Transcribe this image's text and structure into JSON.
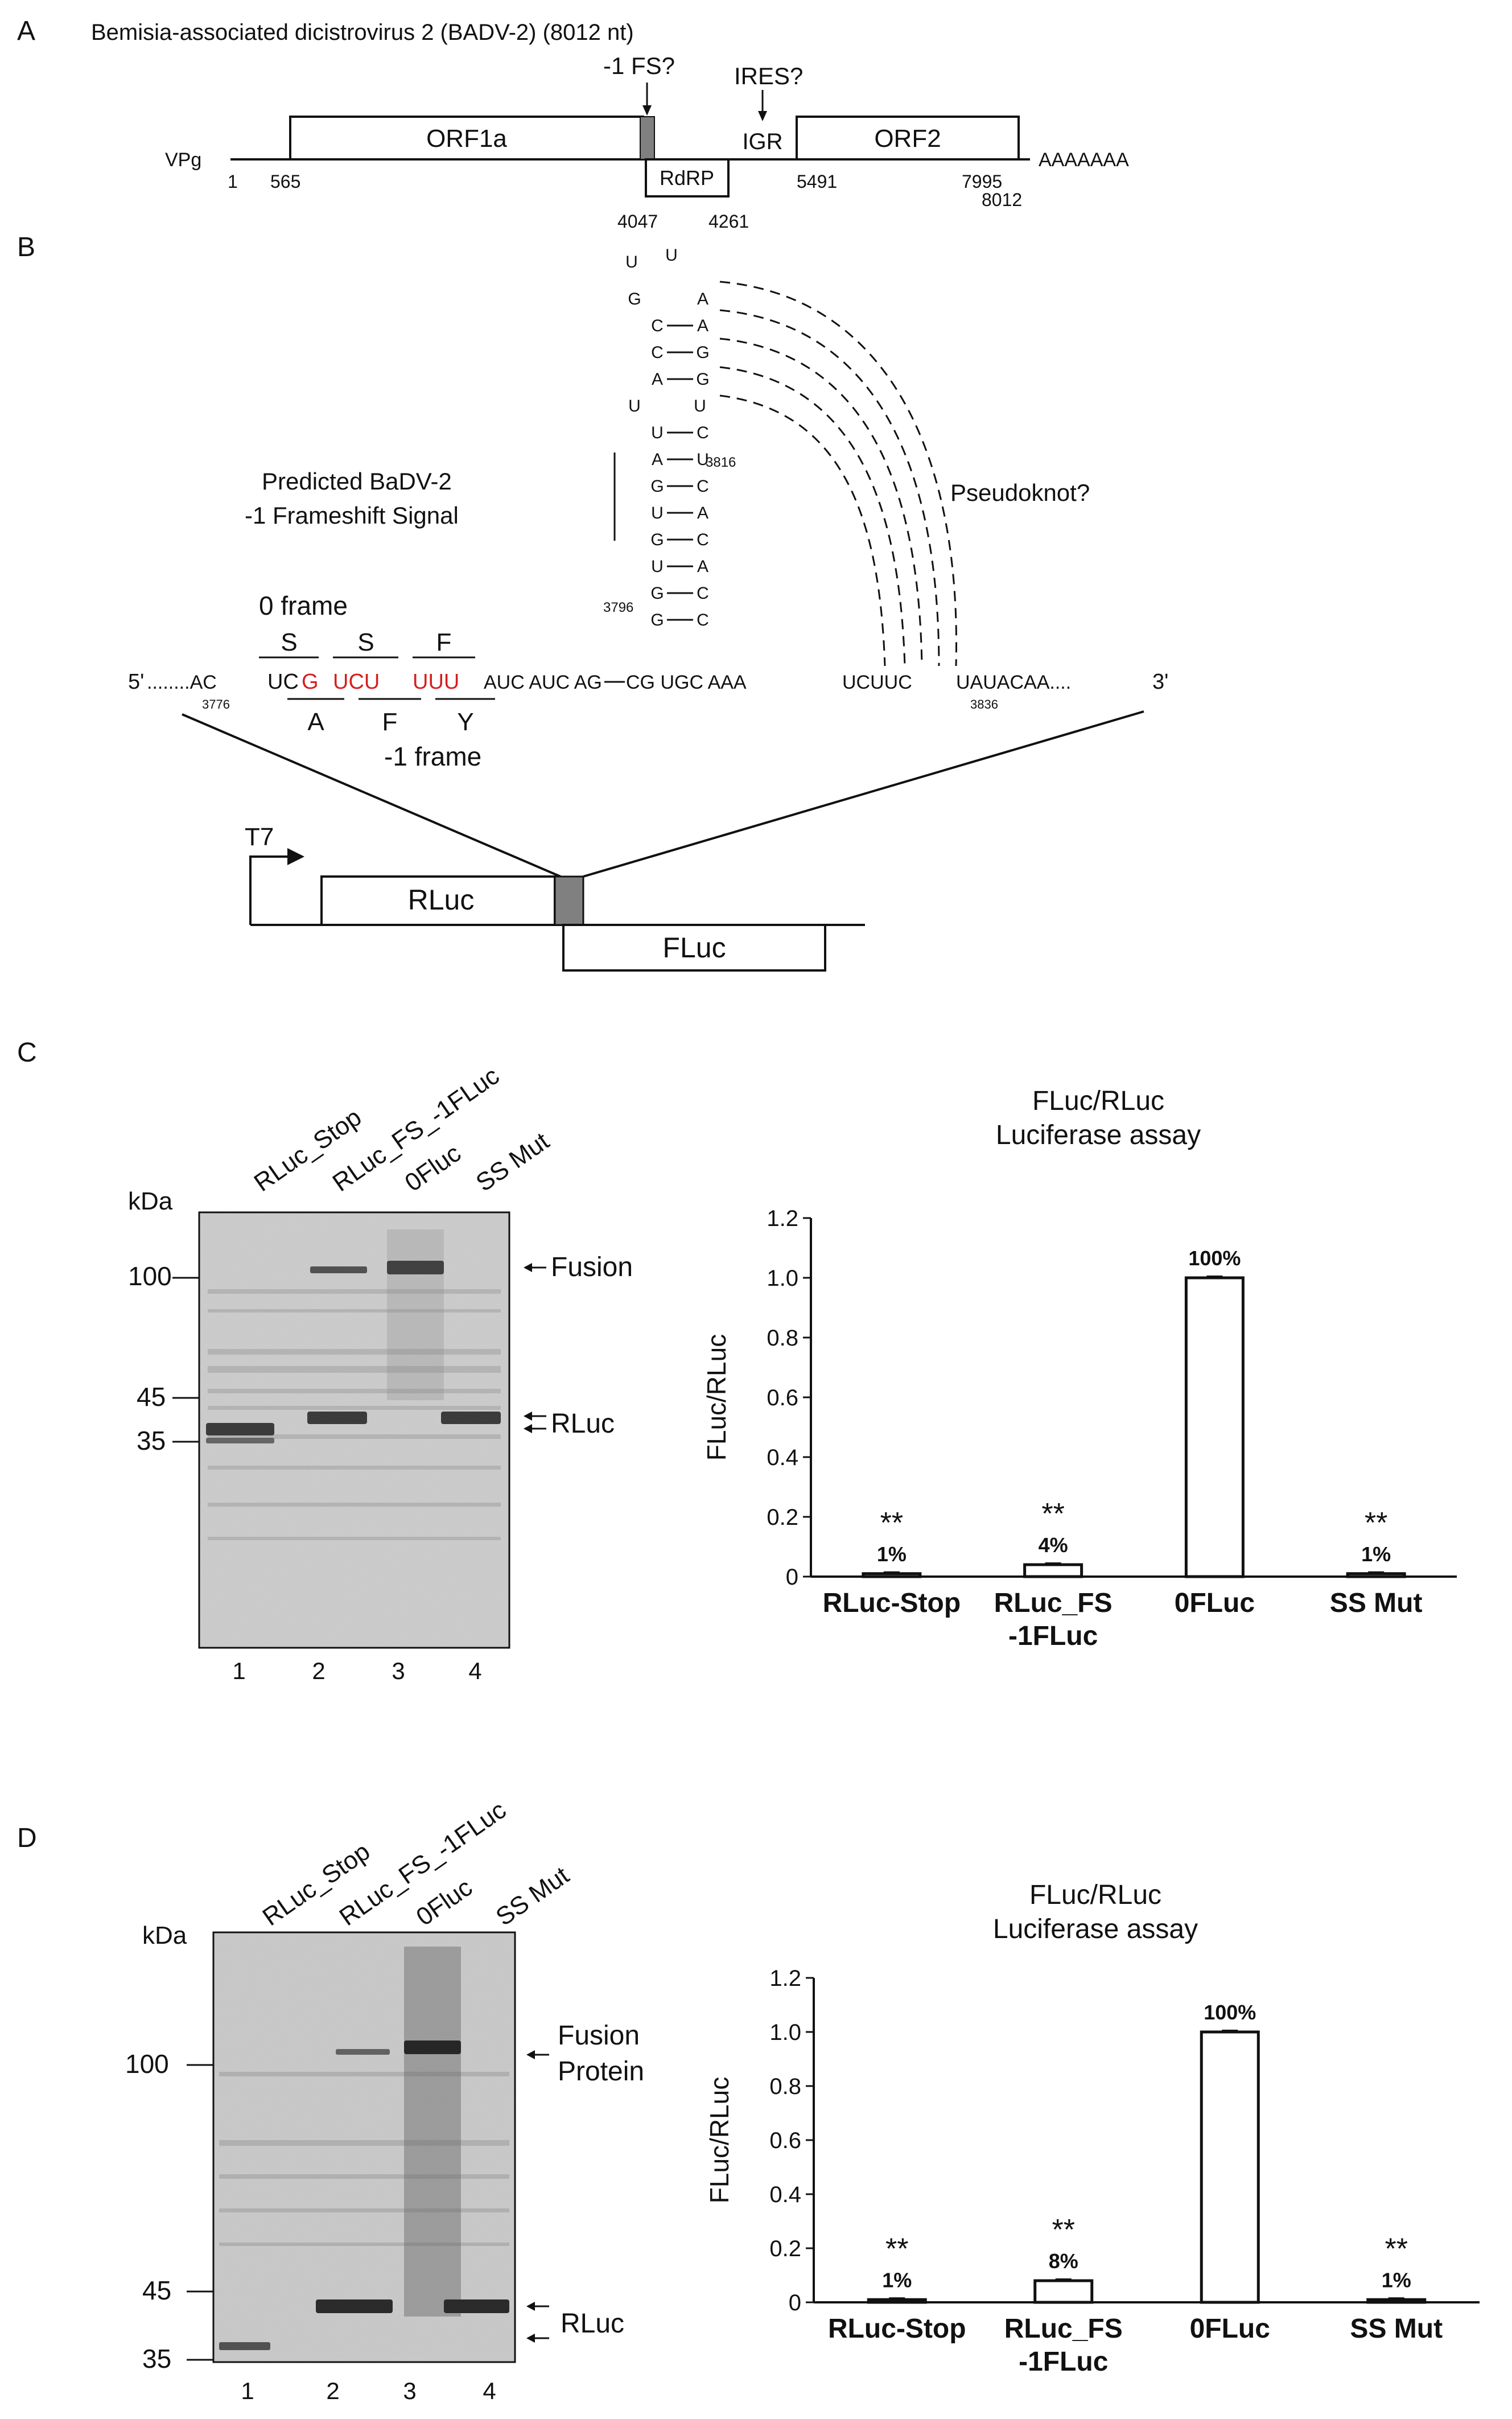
{
  "panelA": {
    "letter": "A",
    "title": "Bemisia-associated dicistrovirus 2 (BADV-2) (8012 nt)",
    "vpg": "VPg",
    "orf1a": "ORF1a",
    "orf2": "ORF2",
    "rdrp": "RdRP",
    "igr": "IGR",
    "fs_label": "-1 FS?",
    "ires_label": "IRES?",
    "polyA": "AAAAAAA",
    "pos_1": "1",
    "pos_565": "565",
    "pos_4047": "4047",
    "pos_4261": "4261",
    "pos_5491": "5491",
    "pos_7995": "7995",
    "pos_8012": "8012"
  },
  "panelB": {
    "letter": "B",
    "predicted_line1": "Predicted BaDV-2",
    "predicted_line2": "-1 Frameshift Signal",
    "pseudoknot": "Pseudoknot?",
    "zero_frame": "0 frame",
    "minus1_frame": "-1 frame",
    "codons_top": [
      "S",
      "S",
      "F"
    ],
    "codons_bottom": [
      "A",
      "F",
      "Y"
    ],
    "five_prime": "5'",
    "three_prime": "3'",
    "seq_left": "........AC",
    "seq_uc": "UC",
    "seq_red1": "G",
    "seq_red2": "UCU",
    "seq_red3": "UUU",
    "seq_mid": "AUC AUC AG",
    "seq_right1": "CG UGC AAA",
    "seq_right2": "UCUUC",
    "seq_right3": "UAUACAA....",
    "pos_3776": "3776",
    "pos_3796": "3796",
    "pos_3816": "3816",
    "pos_3836": "3836",
    "stem_left": [
      "U",
      "G",
      "C",
      "C",
      "A",
      "U",
      "U",
      "A",
      "G",
      "U",
      "G",
      "U",
      "G",
      "G"
    ],
    "stem_right": [
      "U",
      "A",
      "A",
      "G",
      "G",
      "U",
      "C",
      "U",
      "C",
      "A",
      "C",
      "A",
      "C",
      "C"
    ],
    "t7": "T7",
    "rluc": "RLuc",
    "fluc": "FLuc"
  },
  "panelC": {
    "letter": "C",
    "lanes": [
      "RLuc_Stop",
      "RLuc_FS_-1FLuc",
      "0Fluc",
      "SS Mut"
    ],
    "lane_numbers": [
      "1",
      "2",
      "3",
      "4"
    ],
    "kda": "kDa",
    "markers": [
      "100",
      "45",
      "35"
    ],
    "fusion": "Fusion",
    "rluc": "RLuc",
    "chart_title1": "FLuc/RLuc",
    "chart_title2": "Luciferase assay"
  },
  "panelD": {
    "letter": "D",
    "lanes": [
      "RLuc_Stop",
      "RLuc_FS_-1FLuc",
      "0Fluc",
      "SS Mut"
    ],
    "lane_numbers": [
      "1",
      "2",
      "3",
      "4"
    ],
    "kda": "kDa",
    "markers": [
      "100",
      "45",
      "35"
    ],
    "fusion1": "Fusion",
    "fusion2": "Protein",
    "rluc": "RLuc",
    "chart_title1": "FLuc/RLuc",
    "chart_title2": "Luciferase assay"
  },
  "chart_data": [
    {
      "type": "bar",
      "title": "FLuc/RLuc Luciferase assay",
      "ylabel": "FLuc/RLuc",
      "categories": [
        "RLuc-Stop",
        "RLuc_FS -1FLuc",
        "0FLuc",
        "SS Mut"
      ],
      "values": [
        0.01,
        0.04,
        1.0,
        0.01
      ],
      "data_labels": [
        "1%",
        "4%",
        "100%",
        "1%"
      ],
      "significance": [
        "**",
        "**",
        "",
        "**"
      ],
      "ylim": [
        0,
        1.2
      ],
      "yticks": [
        "0",
        "0.2",
        "0.4",
        "0.6",
        "0.8",
        "1.0",
        "1.2"
      ]
    },
    {
      "type": "bar",
      "title": "FLuc/RLuc Luciferase assay",
      "ylabel": "FLuc/RLuc",
      "categories": [
        "RLuc-Stop",
        "RLuc_FS -1FLuc",
        "0FLuc",
        "SS Mut"
      ],
      "values": [
        0.01,
        0.08,
        1.0,
        0.01
      ],
      "data_labels": [
        "1%",
        "8%",
        "100%",
        "1%"
      ],
      "significance": [
        "**",
        "**",
        "",
        "**"
      ],
      "ylim": [
        0,
        1.2
      ],
      "yticks": [
        "0",
        "0.2",
        "0.4",
        "0.6",
        "0.8",
        "1.0",
        "1.2"
      ]
    }
  ]
}
